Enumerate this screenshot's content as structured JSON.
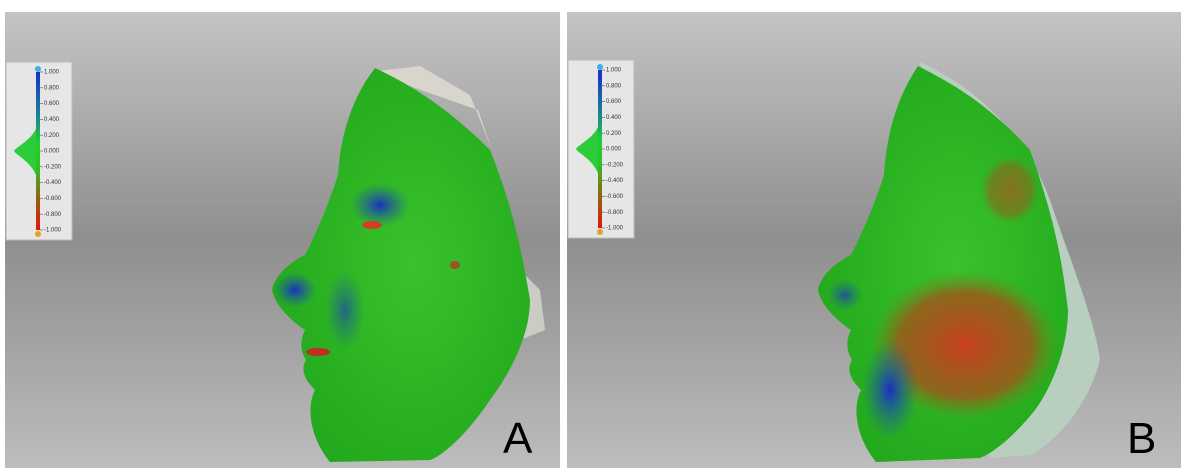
{
  "panels": [
    {
      "label": "A",
      "scale": {
        "ticks": [
          "1.000",
          "0.800",
          "0.600",
          "0.400",
          "0.200",
          "0.000",
          "-0.200",
          "-0.400",
          "-0.600",
          "-0.800",
          "-1.000"
        ]
      }
    },
    {
      "label": "B",
      "scale": {
        "ticks": [
          "1.000",
          "0.800",
          "0.600",
          "0.400",
          "0.200",
          "0.000",
          "-0.200",
          "-0.400",
          "-0.600",
          "-0.800",
          "-1.000"
        ]
      }
    }
  ]
}
